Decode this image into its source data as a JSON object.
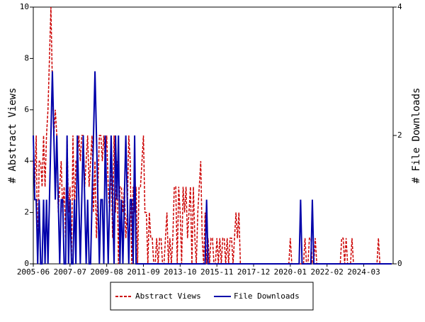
{
  "chart_data": {
    "type": "line",
    "categories": [
      "2005-06",
      null,
      null,
      null,
      null,
      null,
      null,
      null,
      null,
      null,
      null,
      null,
      null,
      null,
      null,
      null,
      null,
      null,
      null,
      null,
      null,
      null,
      null,
      null,
      null,
      "2007-07",
      null,
      null,
      null,
      null,
      null,
      null,
      null,
      null,
      null,
      null,
      null,
      null,
      null,
      null,
      null,
      null,
      null,
      null,
      null,
      null,
      null,
      null,
      null,
      null,
      "2009-08",
      null,
      null,
      null,
      null,
      null,
      null,
      null,
      null,
      null,
      null,
      null,
      null,
      null,
      null,
      null,
      null,
      null,
      null,
      null,
      null,
      null,
      null,
      null,
      null,
      "2011-09",
      null,
      null,
      null,
      null,
      null,
      null,
      null,
      null,
      null,
      null,
      null,
      null,
      null,
      null,
      null,
      null,
      null,
      null,
      null,
      null,
      null,
      null,
      null,
      null,
      "2013-10",
      null,
      null,
      null,
      null,
      null,
      null,
      null,
      null,
      null,
      null,
      null,
      null,
      null,
      null,
      null,
      null,
      null,
      null,
      null,
      null,
      null,
      null,
      null,
      null,
      "2015-11",
      null,
      null,
      null,
      null,
      null,
      null,
      null,
      null,
      null,
      null,
      null,
      null,
      null,
      null,
      null,
      null,
      null,
      null,
      null,
      null,
      null,
      null,
      null,
      null,
      "2017-12",
      null,
      null,
      null,
      null,
      null,
      null,
      null,
      null,
      null,
      null,
      null,
      null,
      null,
      null,
      null,
      null,
      null,
      null,
      null,
      null,
      null,
      null,
      null,
      null,
      "2020-01",
      null,
      null,
      null,
      null,
      null,
      null,
      null,
      null,
      null,
      null,
      null,
      null,
      null,
      null,
      null,
      null,
      null,
      null,
      null,
      null,
      null,
      null,
      null,
      null,
      "2022-02",
      null,
      null,
      null,
      null,
      null,
      null,
      null,
      null,
      null,
      null,
      null,
      null,
      null,
      null,
      null,
      null,
      null,
      null,
      null,
      null,
      null,
      null,
      null,
      null,
      "2024-03",
      null,
      null,
      null,
      null,
      null,
      null,
      null,
      null,
      null,
      null,
      null,
      null,
      null,
      null,
      null,
      null,
      null,
      null,
      null
    ],
    "series": [
      {
        "name": "Abstract Views",
        "color": "#cc0000",
        "dashed": true,
        "values": [
          4,
          3,
          5,
          0,
          4,
          4,
          3,
          5,
          3,
          5,
          6,
          8,
          10,
          7,
          5,
          6,
          5,
          2,
          3,
          4,
          2,
          3,
          1,
          5,
          2,
          3,
          0,
          5,
          2,
          4,
          4,
          5,
          4,
          5,
          5,
          3,
          4,
          5,
          3,
          4,
          5,
          2,
          4,
          1,
          3,
          5,
          5,
          4,
          5,
          4,
          5,
          3,
          2,
          4,
          1,
          5,
          2,
          4,
          0,
          3,
          3,
          2,
          3,
          1,
          2,
          5,
          4,
          0,
          3,
          2,
          3,
          0,
          3,
          3,
          4,
          5,
          2,
          2,
          0,
          2,
          1,
          1,
          0,
          0,
          1,
          0,
          1,
          1,
          0,
          0,
          1,
          2,
          0,
          1,
          0,
          1,
          3,
          3,
          0,
          3,
          2,
          0,
          3,
          2,
          3,
          1,
          2,
          3,
          0,
          3,
          1,
          0,
          2,
          3,
          4,
          1,
          0,
          2,
          0,
          1,
          0,
          1,
          1,
          0,
          0,
          1,
          0,
          1,
          0,
          1,
          1,
          0,
          1,
          0,
          1,
          1,
          0,
          1,
          2,
          1,
          2,
          0,
          0,
          0,
          0,
          0,
          0,
          0,
          0,
          0,
          0,
          0,
          0,
          0,
          0,
          0,
          0,
          0,
          0,
          0,
          0,
          0,
          0,
          0,
          0,
          0,
          0,
          0,
          0,
          0,
          0,
          0,
          0,
          0,
          0,
          1,
          0,
          0,
          0,
          0,
          0,
          0,
          0,
          0,
          0,
          1,
          0,
          0,
          1,
          1,
          0,
          0,
          1,
          0,
          0,
          0,
          0,
          0,
          0,
          0,
          0,
          0,
          0,
          0,
          0,
          0,
          0,
          0,
          0,
          0,
          1,
          1,
          0,
          1,
          0,
          0,
          0,
          1,
          0,
          0,
          0,
          0,
          0,
          0,
          0,
          0,
          0,
          0,
          0,
          0,
          0,
          0,
          0,
          0,
          0,
          1,
          0,
          0,
          0,
          0,
          0,
          0,
          0,
          0,
          0
        ]
      },
      {
        "name": "File Downloads",
        "color": "#0000aa",
        "axis": "y2",
        "values": [
          2,
          1,
          1,
          0,
          1,
          0,
          0,
          1,
          0,
          1,
          0,
          1,
          2,
          3,
          2,
          1,
          2,
          1,
          0,
          1,
          1,
          0,
          0,
          2,
          0,
          1,
          0,
          0,
          1,
          0,
          2,
          1,
          0,
          1,
          2,
          1,
          0,
          1,
          0,
          0,
          1,
          2,
          3,
          2,
          1,
          0,
          1,
          1,
          0,
          2,
          1,
          0,
          1,
          2,
          1,
          0,
          2,
          1,
          2,
          0,
          1,
          0,
          1,
          2,
          1,
          0,
          1,
          1,
          0,
          2,
          0,
          0,
          0,
          0,
          0,
          0,
          0,
          0,
          0,
          0,
          0,
          0,
          0,
          0,
          0,
          0,
          0,
          0,
          0,
          0,
          0,
          0,
          0,
          0,
          0,
          0,
          0,
          0,
          0,
          0,
          0,
          0,
          0,
          0,
          0,
          0,
          0,
          0,
          0,
          0,
          0,
          0,
          0,
          0,
          0,
          0,
          0,
          0,
          1,
          0,
          0,
          0,
          0,
          0,
          0,
          0,
          0,
          0,
          0,
          0,
          0,
          0,
          0,
          0,
          0,
          0,
          0,
          0,
          0,
          0,
          0,
          0,
          0,
          0,
          0,
          0,
          0,
          0,
          0,
          0,
          0,
          0,
          0,
          0,
          0,
          0,
          0,
          0,
          0,
          0,
          0,
          0,
          0,
          0,
          0,
          0,
          0,
          0,
          0,
          0,
          0,
          0,
          0,
          0,
          0,
          0,
          0,
          0,
          0,
          0,
          0,
          0,
          1,
          0,
          0,
          0,
          0,
          0,
          0,
          0,
          1,
          0,
          0,
          0,
          0,
          0,
          0,
          0,
          0,
          0,
          0,
          0,
          0,
          0,
          0,
          0,
          0,
          0,
          0,
          0,
          0,
          0,
          0,
          0,
          0,
          0,
          0,
          0,
          0,
          0,
          0,
          0,
          0,
          0,
          0,
          0,
          0,
          0,
          0,
          0,
          0,
          0,
          0,
          0,
          0,
          0,
          0,
          0,
          0,
          0,
          0,
          0,
          0,
          0,
          0
        ]
      }
    ],
    "ylabel": "# Abstract Views",
    "y2label": "# File Downloads",
    "ylim": [
      0,
      10
    ],
    "yticks": [
      0,
      2,
      4,
      6,
      8,
      10
    ],
    "y2lim": [
      0,
      4
    ],
    "y2ticks": [
      0,
      2,
      4
    ],
    "legend": "bottom"
  }
}
